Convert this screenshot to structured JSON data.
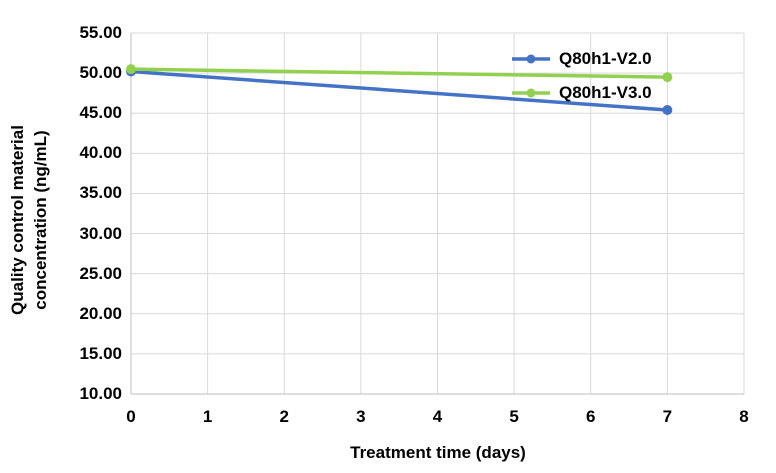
{
  "chart_data": {
    "type": "line",
    "xlabel": "Treatment time (days)",
    "ylabel": "Quality control material concentration (ng/mL)",
    "ylabel_lines": [
      "Quality control material",
      "concentration (ng/mL)"
    ],
    "x": [
      0,
      7
    ],
    "series": [
      {
        "name": "Q80h1-V2.0",
        "color": "#4472C4",
        "values": [
          50.2,
          45.4
        ]
      },
      {
        "name": "Q80h1-V3.0",
        "color": "#92D050",
        "values": [
          50.5,
          49.5
        ]
      }
    ],
    "xlim": [
      0,
      8
    ],
    "ylim": [
      10,
      55
    ],
    "xticks": [
      0,
      1,
      2,
      3,
      4,
      5,
      6,
      7,
      8
    ],
    "xtick_labels": [
      "0",
      "1",
      "2",
      "3",
      "4",
      "5",
      "6",
      "7",
      "8"
    ],
    "ytick_labels": [
      "55.00",
      "50.00",
      "45.00",
      "40.00",
      "35.00",
      "30.00",
      "25.00",
      "20.00",
      "15.00",
      "10.00"
    ],
    "grid": true,
    "legend_position": "inside-top-right",
    "colors": {
      "gridline": "#D9D9D9",
      "axis": "#BFBFBF",
      "text": "#000000",
      "background": "#FFFFFF"
    }
  }
}
